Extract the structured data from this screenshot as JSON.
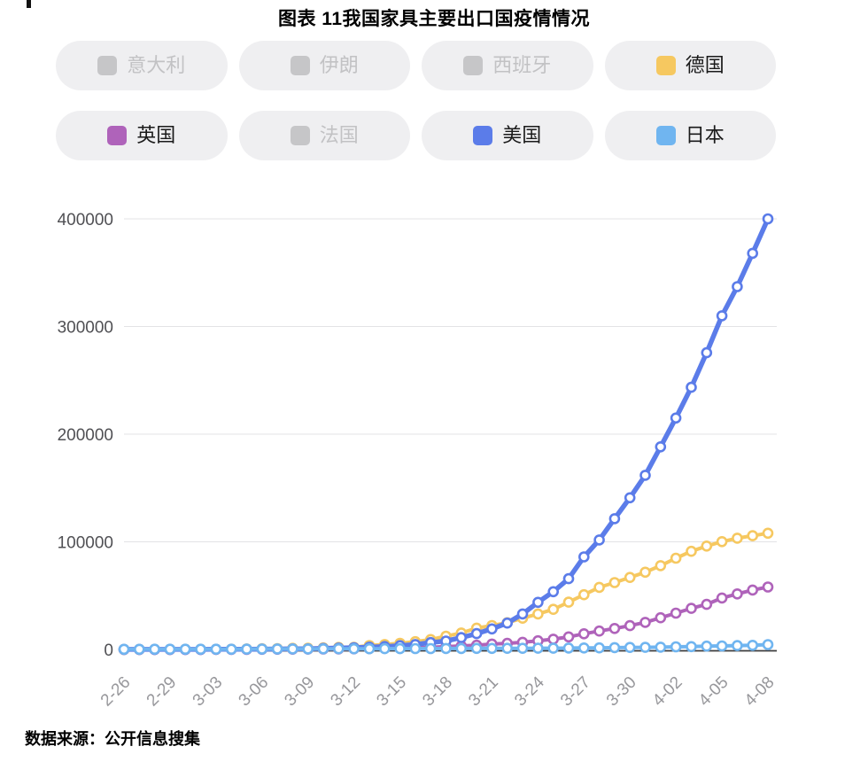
{
  "page": {
    "title": "图表 11我国家具主要出口国疫情情况",
    "source": "数据来源：公开信息搜集"
  },
  "colors": {
    "germany": "#F6C860",
    "uk": "#AF63BA",
    "usa": "#5B7CE9",
    "japan": "#70B5F0",
    "inactive_swatch": "#C6C6C8",
    "gridline": "#E3E3E5",
    "axis_line": "#3C3C3E",
    "y_label": "#505054",
    "x_label": "#97979B",
    "legend_pill_bg": "#EFEFF1"
  },
  "legend": {
    "items": [
      {
        "id": "italy",
        "label": "意大利",
        "active": false,
        "color": "#C6C6C8"
      },
      {
        "id": "iran",
        "label": "伊朗",
        "active": false,
        "color": "#C6C6C8"
      },
      {
        "id": "spain",
        "label": "西班牙",
        "active": false,
        "color": "#C6C6C8"
      },
      {
        "id": "germany",
        "label": "德国",
        "active": true,
        "color": "#F6C860"
      },
      {
        "id": "uk",
        "label": "英国",
        "active": true,
        "color": "#AF63BA"
      },
      {
        "id": "france",
        "label": "法国",
        "active": false,
        "color": "#C6C6C8"
      },
      {
        "id": "usa",
        "label": "美国",
        "active": true,
        "color": "#5B7CE9"
      },
      {
        "id": "japan",
        "label": "日本",
        "active": true,
        "color": "#70B5F0"
      }
    ]
  },
  "chart_data": {
    "type": "line",
    "title": "图表 11我国家具主要出口国疫情情况",
    "xlabel": "",
    "ylabel": "",
    "ylim": [
      0,
      400000
    ],
    "y_ticks": [
      0,
      100000,
      200000,
      300000,
      400000
    ],
    "grid": true,
    "legend_position": "top",
    "markers": "circle-hollow",
    "x": [
      "2-26",
      "2-27",
      "2-28",
      "2-29",
      "3-01",
      "3-02",
      "3-03",
      "3-04",
      "3-05",
      "3-06",
      "3-07",
      "3-08",
      "3-09",
      "3-10",
      "3-11",
      "3-12",
      "3-13",
      "3-14",
      "3-15",
      "3-16",
      "3-17",
      "3-18",
      "3-19",
      "3-20",
      "3-21",
      "3-22",
      "3-23",
      "3-24",
      "3-25",
      "3-26",
      "3-27",
      "3-28",
      "3-29",
      "3-30",
      "3-31",
      "4-01",
      "4-02",
      "4-03",
      "4-04",
      "4-05",
      "4-06",
      "4-07",
      "4-08"
    ],
    "x_tick_labels": [
      "2-26",
      "2-29",
      "3-03",
      "3-06",
      "3-09",
      "3-12",
      "3-15",
      "3-18",
      "3-21",
      "3-24",
      "3-27",
      "3-30",
      "4-02",
      "4-05",
      "4-08"
    ],
    "x_tick_every": 3,
    "hidden_series": [
      "意大利",
      "伊朗",
      "西班牙",
      "法国"
    ],
    "series": [
      {
        "id": "germany",
        "name": "德国",
        "color": "#F6C860",
        "line_width": 4,
        "values": [
          27,
          46,
          48,
          79,
          130,
          159,
          196,
          262,
          482,
          670,
          799,
          1040,
          1176,
          1457,
          1908,
          2078,
          3675,
          4585,
          5795,
          7272,
          9257,
          12330,
          15320,
          19850,
          22210,
          24870,
          29060,
          32990,
          37320,
          43940,
          50870,
          57700,
          62100,
          66885,
          71810,
          77870,
          84795,
          91160,
          96090,
          100125,
          103375,
          105660,
          108000
        ]
      },
      {
        "id": "uk",
        "name": "英国",
        "color": "#AF63BA",
        "line_width": 4,
        "values": [
          13,
          13,
          16,
          20,
          36,
          40,
          51,
          86,
          116,
          163,
          206,
          273,
          321,
          382,
          456,
          590,
          798,
          1140,
          1391,
          1543,
          1950,
          2626,
          3269,
          3983,
          5018,
          5683,
          6650,
          8077,
          9529,
          11658,
          14543,
          17089,
          19522,
          22141,
          25150,
          29474,
          33718,
          38168,
          41903,
          47806,
          51608,
          55242,
          58000
        ]
      },
      {
        "id": "usa",
        "name": "美国",
        "color": "#5B7CE9",
        "line_width": 5.5,
        "values": [
          60,
          62,
          65,
          70,
          90,
          105,
          125,
          160,
          230,
          310,
          420,
          540,
          610,
          960,
          1280,
          1670,
          2180,
          2730,
          3500,
          4630,
          6420,
          7800,
          11000,
          14700,
          19100,
          24500,
          33000,
          43800,
          53700,
          65800,
          86000,
          101700,
          121500,
          140900,
          161800,
          188200,
          215000,
          243500,
          275600,
          310000,
          337000,
          368000,
          400000
        ]
      },
      {
        "id": "japan",
        "name": "日本",
        "color": "#70B5F0",
        "line_width": 4,
        "values": [
          164,
          186,
          210,
          230,
          243,
          254,
          268,
          284,
          317,
          420,
          461,
          502,
          511,
          581,
          639,
          665,
          675,
          716,
          780,
          814,
          829,
          889,
          924,
          963,
          1007,
          1046,
          1089,
          1128,
          1193,
          1291,
          1387,
          1468,
          1693,
          1866,
          1953,
          2178,
          2495,
          2617,
          3139,
          3271,
          3654,
          3906,
          4500
        ]
      }
    ]
  }
}
